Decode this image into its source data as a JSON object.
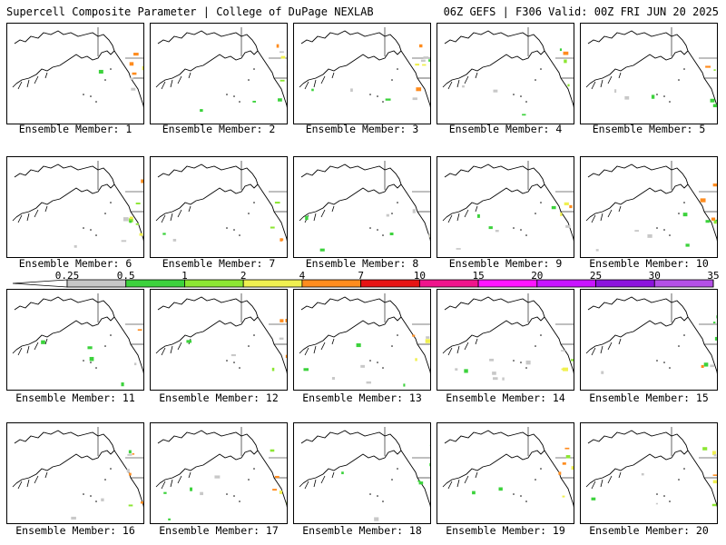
{
  "header": {
    "left": "Supercell Composite Parameter | College of DuPage NEXLAB",
    "right": "06Z GEFS | F306 Valid: 00Z FRI JUN 20 2025"
  },
  "member_label_prefix": "Ensemble Member: ",
  "members": [
    1,
    2,
    3,
    4,
    5,
    6,
    7,
    8,
    9,
    10,
    11,
    12,
    13,
    14,
    15,
    16,
    17,
    18,
    19,
    20
  ],
  "colorbar": {
    "labels": [
      "0.25",
      "0.5",
      "1",
      "2",
      "4",
      "7",
      "10",
      "15",
      "20",
      "25",
      "30",
      "35"
    ],
    "colors": [
      "#c8c8c8",
      "#3cd23c",
      "#8ce632",
      "#f0f050",
      "#ff8c1e",
      "#e61414",
      "#f0148c",
      "#ff14ff",
      "#c814ff",
      "#8c14dc",
      "#b450e6",
      "#28e6f0"
    ]
  },
  "map": {
    "regions": [
      "North Pacific",
      "Alaska",
      "Western Canada",
      "Western United States"
    ]
  }
}
